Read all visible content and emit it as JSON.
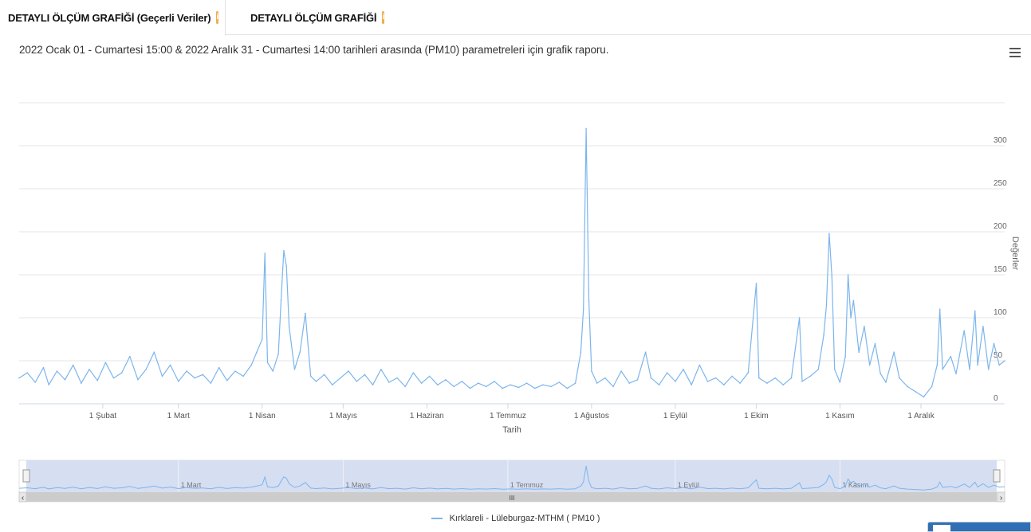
{
  "tabs": [
    {
      "label": "DETAYLI ÖLÇÜM GRAFİĞİ (Geçerli Veriler)",
      "badge": "i"
    },
    {
      "label": "DETAYLI ÖLÇÜM GRAFİĞİ",
      "badge": "i"
    }
  ],
  "subtitle": "2022 Ocak 01 - Cumartesi 15:00 & 2022 Aralık 31 - Cumartesi 14:00 tarihleri arasında (PM10) parametreleri için grafik raporu.",
  "colors": {
    "series": "#7cb5ec",
    "navigator_mask": "#cfd8ee",
    "grid": "#e6e6e6",
    "badge": "#f0ad4e"
  },
  "menu_icon": "hamburger-icon",
  "chart_data": {
    "type": "line",
    "xlabel": "Tarih",
    "ylabel": "Değerler",
    "y_axis_position": "right",
    "ylim": [
      0,
      350
    ],
    "y_ticks": [
      0,
      50,
      100,
      150,
      200,
      250,
      300
    ],
    "x_ticks": [
      "1 Şubat",
      "1 Mart",
      "1 Nisan",
      "1 Mayıs",
      "1 Haziran",
      "1 Temmuz",
      "1 Ağustos",
      "1 Eylül",
      "1 Ekim",
      "1 Kasım",
      "1 Aralık"
    ],
    "x_tick_days": [
      31,
      59,
      90,
      120,
      151,
      181,
      212,
      243,
      273,
      304,
      334
    ],
    "x_range_days": [
      0,
      365
    ],
    "navigator_labels": [
      "1 Mart",
      "1 Mayıs",
      "1 Temmuz",
      "1 Eylül",
      "1 Kasım"
    ],
    "navigator_label_days": [
      59,
      120,
      181,
      243,
      304
    ],
    "grid": true,
    "legend_position": "bottom-center",
    "series": [
      {
        "name": "Kırklareli - Lüleburgaz-MTHM ( PM10 )",
        "color": "#7cb5ec",
        "x_unit": "days since 2022-01-01",
        "points": [
          [
            0,
            30
          ],
          [
            3,
            36
          ],
          [
            6,
            25
          ],
          [
            9,
            42
          ],
          [
            11,
            22
          ],
          [
            14,
            38
          ],
          [
            17,
            28
          ],
          [
            20,
            45
          ],
          [
            23,
            24
          ],
          [
            26,
            40
          ],
          [
            29,
            27
          ],
          [
            32,
            48
          ],
          [
            35,
            30
          ],
          [
            38,
            36
          ],
          [
            41,
            55
          ],
          [
            44,
            28
          ],
          [
            47,
            40
          ],
          [
            50,
            60
          ],
          [
            53,
            32
          ],
          [
            56,
            45
          ],
          [
            59,
            26
          ],
          [
            62,
            38
          ],
          [
            65,
            30
          ],
          [
            68,
            34
          ],
          [
            71,
            24
          ],
          [
            74,
            42
          ],
          [
            77,
            27
          ],
          [
            80,
            38
          ],
          [
            83,
            32
          ],
          [
            86,
            45
          ],
          [
            88,
            60
          ],
          [
            90,
            75
          ],
          [
            91,
            175
          ],
          [
            92,
            48
          ],
          [
            94,
            38
          ],
          [
            96,
            58
          ],
          [
            97,
            120
          ],
          [
            98,
            178
          ],
          [
            99,
            160
          ],
          [
            100,
            90
          ],
          [
            102,
            40
          ],
          [
            104,
            60
          ],
          [
            106,
            105
          ],
          [
            108,
            32
          ],
          [
            110,
            26
          ],
          [
            113,
            34
          ],
          [
            116,
            22
          ],
          [
            119,
            30
          ],
          [
            122,
            38
          ],
          [
            125,
            26
          ],
          [
            128,
            34
          ],
          [
            131,
            22
          ],
          [
            134,
            40
          ],
          [
            137,
            25
          ],
          [
            140,
            30
          ],
          [
            143,
            20
          ],
          [
            146,
            36
          ],
          [
            149,
            24
          ],
          [
            152,
            32
          ],
          [
            155,
            22
          ],
          [
            158,
            28
          ],
          [
            161,
            20
          ],
          [
            164,
            26
          ],
          [
            167,
            18
          ],
          [
            170,
            24
          ],
          [
            173,
            20
          ],
          [
            176,
            26
          ],
          [
            179,
            18
          ],
          [
            182,
            22
          ],
          [
            185,
            19
          ],
          [
            188,
            24
          ],
          [
            191,
            18
          ],
          [
            194,
            22
          ],
          [
            197,
            20
          ],
          [
            200,
            25
          ],
          [
            203,
            18
          ],
          [
            206,
            24
          ],
          [
            208,
            60
          ],
          [
            209,
            110
          ],
          [
            210,
            320
          ],
          [
            211,
            120
          ],
          [
            212,
            38
          ],
          [
            214,
            24
          ],
          [
            217,
            30
          ],
          [
            220,
            20
          ],
          [
            223,
            38
          ],
          [
            226,
            24
          ],
          [
            229,
            28
          ],
          [
            232,
            60
          ],
          [
            234,
            30
          ],
          [
            237,
            22
          ],
          [
            240,
            36
          ],
          [
            243,
            26
          ],
          [
            246,
            40
          ],
          [
            249,
            22
          ],
          [
            252,
            45
          ],
          [
            255,
            26
          ],
          [
            258,
            30
          ],
          [
            261,
            22
          ],
          [
            264,
            32
          ],
          [
            267,
            24
          ],
          [
            270,
            36
          ],
          [
            273,
            140
          ],
          [
            274,
            30
          ],
          [
            277,
            24
          ],
          [
            280,
            30
          ],
          [
            283,
            22
          ],
          [
            286,
            30
          ],
          [
            289,
            100
          ],
          [
            290,
            26
          ],
          [
            293,
            32
          ],
          [
            296,
            40
          ],
          [
            298,
            80
          ],
          [
            299,
            115
          ],
          [
            300,
            198
          ],
          [
            301,
            148
          ],
          [
            302,
            40
          ],
          [
            304,
            25
          ],
          [
            306,
            55
          ],
          [
            307,
            150
          ],
          [
            308,
            100
          ],
          [
            309,
            120
          ],
          [
            311,
            60
          ],
          [
            313,
            90
          ],
          [
            315,
            45
          ],
          [
            317,
            70
          ],
          [
            319,
            35
          ],
          [
            321,
            25
          ],
          [
            324,
            60
          ],
          [
            326,
            30
          ],
          [
            329,
            20
          ],
          [
            332,
            14
          ],
          [
            335,
            8
          ],
          [
            338,
            20
          ],
          [
            340,
            45
          ],
          [
            341,
            110
          ],
          [
            342,
            40
          ],
          [
            345,
            55
          ],
          [
            347,
            35
          ],
          [
            350,
            85
          ],
          [
            352,
            40
          ],
          [
            354,
            108
          ],
          [
            355,
            45
          ],
          [
            357,
            90
          ],
          [
            359,
            40
          ],
          [
            361,
            70
          ],
          [
            363,
            45
          ],
          [
            365,
            50
          ]
        ]
      }
    ]
  },
  "navigator": {
    "scroll_grip": "III",
    "left_arrow": "‹",
    "right_arrow": "›"
  },
  "legend": {
    "label": "Kırklareli - Lüleburgaz-MTHM ( PM10 )"
  }
}
